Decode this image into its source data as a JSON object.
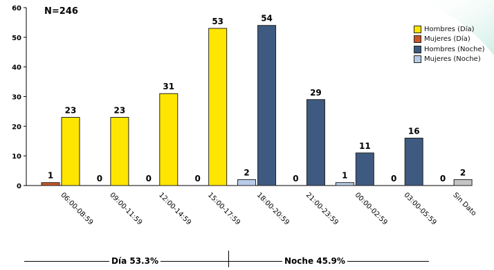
{
  "annotation": "N=246",
  "colors": {
    "hombres_dia": "#ffe600",
    "mujeres_dia": "#c8562a",
    "hombres_noche": "#3e5a80",
    "mujeres_noche": "#b8cce8",
    "sin_dato": "#c4c4c4"
  },
  "periods": {
    "dia": "Día 53.3%",
    "noche": "Noche 45.9%"
  },
  "chart_data": {
    "type": "bar",
    "title": "",
    "xlabel": "",
    "ylabel": "",
    "ylim": [
      0,
      60
    ],
    "yticks": [
      0,
      10,
      20,
      30,
      40,
      50,
      60
    ],
    "grid": false,
    "legend_position": "top-right",
    "categories": [
      "06:00-08:59",
      "09:00-11:59",
      "12:00-14:59",
      "15:00-17:59",
      "18:00-20:59",
      "21:00-23:59",
      "00:00-02:59",
      "03:00-05:59",
      "Sin Dato"
    ],
    "series": [
      {
        "name": "Hombres (Día)",
        "values": [
          23,
          23,
          31,
          53,
          null,
          null,
          null,
          null,
          null
        ]
      },
      {
        "name": "Mujeres (Día)",
        "values": [
          1,
          0,
          0,
          0,
          null,
          null,
          null,
          null,
          null
        ]
      },
      {
        "name": "Hombres (Noche)",
        "values": [
          null,
          null,
          null,
          null,
          54,
          29,
          11,
          16,
          null
        ]
      },
      {
        "name": "Mujeres (Noche)",
        "values": [
          null,
          null,
          null,
          null,
          2,
          0,
          1,
          0,
          null
        ]
      }
    ],
    "unlabeled": {
      "values": [
        null,
        null,
        null,
        null,
        null,
        null,
        null,
        null,
        0
      ]
    },
    "sin_dato": {
      "values": [
        null,
        null,
        null,
        null,
        null,
        null,
        null,
        null,
        2
      ]
    }
  }
}
